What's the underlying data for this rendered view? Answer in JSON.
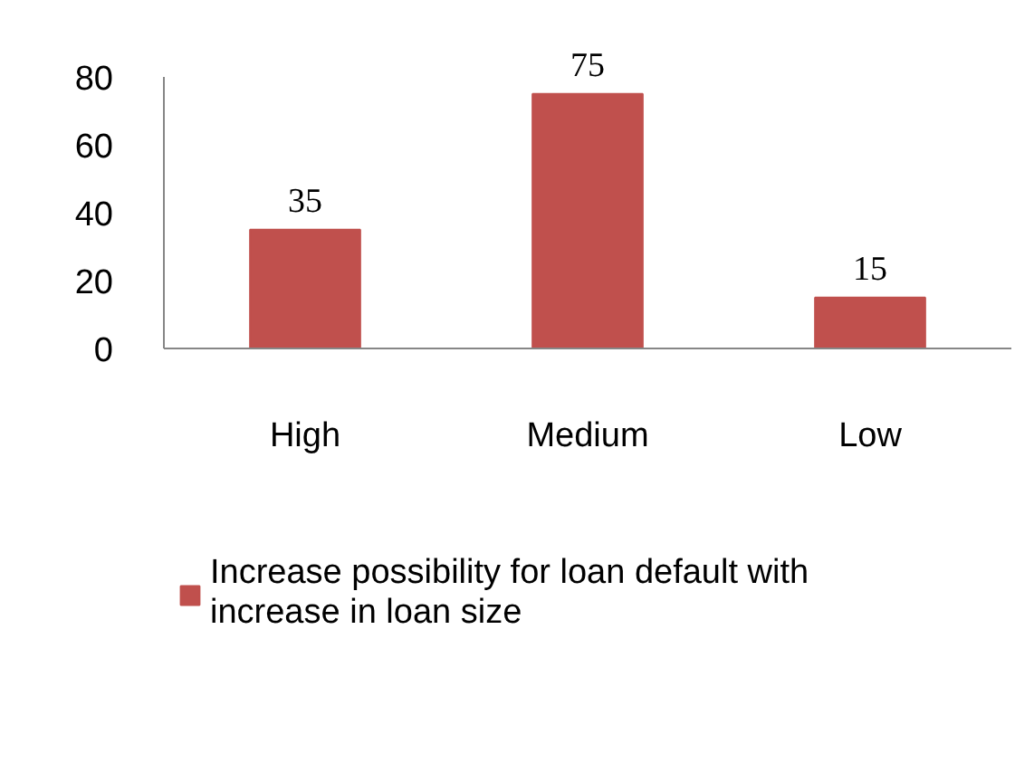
{
  "chart_data": {
    "type": "bar",
    "categories": [
      "High",
      "Medium",
      "Low"
    ],
    "series": [
      {
        "name": "Increase possibility for loan default with increase in loan size",
        "color": "#c0504d",
        "values": [
          35,
          75,
          15
        ]
      }
    ],
    "ylim": [
      0,
      80
    ],
    "yticks": [
      0,
      20,
      40,
      60,
      80
    ],
    "grid": false,
    "legend": "bottom",
    "data_labels": true
  }
}
